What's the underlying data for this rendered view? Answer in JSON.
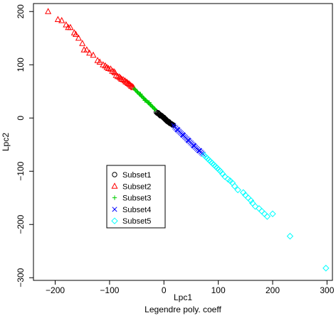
{
  "chart_data": {
    "type": "scatter",
    "title": "",
    "xlabel": "Lpc1",
    "ylabel": "Lpc2",
    "subtitle": "Legendre poly. coeff",
    "xlim": [
      -240,
      310
    ],
    "ylim": [
      -305,
      215
    ],
    "xticks": [
      -200,
      -100,
      0,
      100,
      200,
      300
    ],
    "yticks": [
      -300,
      -200,
      -100,
      0,
      100,
      200
    ],
    "grid": false,
    "legend_position": "lower-left",
    "series": [
      {
        "name": "Subset1",
        "marker": "circle",
        "color": "#000000",
        "points": [
          [
            -14,
            11
          ],
          [
            -12,
            9
          ],
          [
            -10,
            8
          ],
          [
            -8,
            7
          ],
          [
            -7,
            5
          ],
          [
            -6,
            4
          ],
          [
            -4,
            4
          ],
          [
            -3,
            3
          ],
          [
            -2,
            2
          ],
          [
            -1,
            1
          ],
          [
            0,
            0
          ],
          [
            1,
            -1
          ],
          [
            2,
            -2
          ],
          [
            3,
            -3
          ],
          [
            4,
            -4
          ],
          [
            5,
            -5
          ],
          [
            6,
            -6
          ],
          [
            7,
            -7
          ],
          [
            8,
            -7
          ],
          [
            9,
            -8
          ],
          [
            10,
            -9
          ],
          [
            11,
            -10
          ],
          [
            13,
            -11
          ],
          [
            15,
            -12
          ],
          [
            17,
            -13
          ],
          [
            -11,
            10
          ],
          [
            -9,
            7
          ],
          [
            -5,
            5
          ],
          [
            0,
            1
          ],
          [
            3,
            -2
          ],
          [
            6,
            -5
          ],
          [
            9,
            -7
          ],
          [
            12,
            -10
          ],
          [
            14,
            -11
          ],
          [
            16,
            -13
          ]
        ]
      },
      {
        "name": "Subset2",
        "marker": "triangle",
        "color": "#ff0000",
        "points": [
          [
            -213,
            200
          ],
          [
            -195,
            185
          ],
          [
            -188,
            183
          ],
          [
            -180,
            175
          ],
          [
            -176,
            170
          ],
          [
            -172,
            170
          ],
          [
            -165,
            160
          ],
          [
            -162,
            157
          ],
          [
            -157,
            150
          ],
          [
            -150,
            140
          ],
          [
            -147,
            128
          ],
          [
            -142,
            128
          ],
          [
            -137,
            122
          ],
          [
            -130,
            118
          ],
          [
            -122,
            108
          ],
          [
            -118,
            105
          ],
          [
            -112,
            100
          ],
          [
            -108,
            98
          ],
          [
            -105,
            95
          ],
          [
            -102,
            93
          ],
          [
            -98,
            92
          ],
          [
            -95,
            88
          ],
          [
            -92,
            87
          ],
          [
            -90,
            85
          ],
          [
            -88,
            80
          ],
          [
            -85,
            78
          ],
          [
            -82,
            77
          ],
          [
            -80,
            75
          ],
          [
            -78,
            73
          ],
          [
            -75,
            72
          ],
          [
            -72,
            70
          ],
          [
            -70,
            68
          ],
          [
            -68,
            67
          ],
          [
            -66,
            65
          ],
          [
            -64,
            64
          ],
          [
            -62,
            62
          ],
          [
            -60,
            60
          ],
          [
            -58,
            59
          ],
          [
            -56,
            57
          ]
        ]
      },
      {
        "name": "Subset3",
        "marker": "plus",
        "color": "#00cc00",
        "points": [
          [
            -55,
            55
          ],
          [
            -52,
            52
          ],
          [
            -50,
            50
          ],
          [
            -48,
            48
          ],
          [
            -46,
            46
          ],
          [
            -44,
            44
          ],
          [
            -42,
            42
          ],
          [
            -40,
            40
          ],
          [
            -38,
            38
          ],
          [
            -36,
            36
          ],
          [
            -34,
            34
          ],
          [
            -32,
            32
          ],
          [
            -30,
            30
          ],
          [
            -28,
            28
          ],
          [
            -26,
            26
          ],
          [
            -24,
            24
          ],
          [
            -22,
            22
          ],
          [
            -20,
            20
          ],
          [
            -18,
            18
          ],
          [
            -16,
            16
          ],
          [
            -53,
            54
          ],
          [
            -49,
            49
          ],
          [
            -45,
            45
          ],
          [
            -41,
            41
          ],
          [
            -37,
            37
          ],
          [
            -33,
            33
          ],
          [
            -29,
            29
          ],
          [
            -25,
            25
          ],
          [
            -21,
            21
          ],
          [
            -17,
            17
          ],
          [
            -43,
            45
          ],
          [
            -35,
            33
          ],
          [
            -27,
            29
          ]
        ]
      },
      {
        "name": "Subset4",
        "marker": "x",
        "color": "#0000ff",
        "points": [
          [
            18,
            -14
          ],
          [
            20,
            -17
          ],
          [
            22,
            -19
          ],
          [
            24,
            -21
          ],
          [
            26,
            -23
          ],
          [
            28,
            -25
          ],
          [
            30,
            -27
          ],
          [
            32,
            -29
          ],
          [
            34,
            -31
          ],
          [
            36,
            -33
          ],
          [
            38,
            -35
          ],
          [
            40,
            -37
          ],
          [
            42,
            -39
          ],
          [
            44,
            -41
          ],
          [
            46,
            -43
          ],
          [
            48,
            -45
          ],
          [
            50,
            -47
          ],
          [
            52,
            -49
          ],
          [
            54,
            -51
          ],
          [
            56,
            -53
          ],
          [
            58,
            -55
          ],
          [
            60,
            -57
          ],
          [
            62,
            -59
          ],
          [
            64,
            -61
          ],
          [
            66,
            -62
          ],
          [
            68,
            -64
          ],
          [
            70,
            -66
          ],
          [
            72,
            -68
          ],
          [
            25,
            -22
          ],
          [
            35,
            -32
          ],
          [
            45,
            -42
          ],
          [
            55,
            -52
          ],
          [
            65,
            -61
          ]
        ]
      },
      {
        "name": "Subset5",
        "marker": "diamond",
        "color": "#00ffff",
        "points": [
          [
            74,
            -70
          ],
          [
            77,
            -73
          ],
          [
            80,
            -76
          ],
          [
            83,
            -79
          ],
          [
            86,
            -82
          ],
          [
            89,
            -85
          ],
          [
            92,
            -88
          ],
          [
            95,
            -91
          ],
          [
            98,
            -94
          ],
          [
            101,
            -97
          ],
          [
            104,
            -100
          ],
          [
            108,
            -105
          ],
          [
            112,
            -110
          ],
          [
            118,
            -115
          ],
          [
            122,
            -118
          ],
          [
            126,
            -122
          ],
          [
            130,
            -128
          ],
          [
            136,
            -135
          ],
          [
            146,
            -140
          ],
          [
            150,
            -145
          ],
          [
            155,
            -150
          ],
          [
            160,
            -155
          ],
          [
            163,
            -160
          ],
          [
            168,
            -166
          ],
          [
            175,
            -170
          ],
          [
            180,
            -175
          ],
          [
            185,
            -180
          ],
          [
            190,
            -185
          ],
          [
            200,
            -180
          ],
          [
            232,
            -222
          ],
          [
            298,
            -282
          ]
        ]
      }
    ]
  }
}
